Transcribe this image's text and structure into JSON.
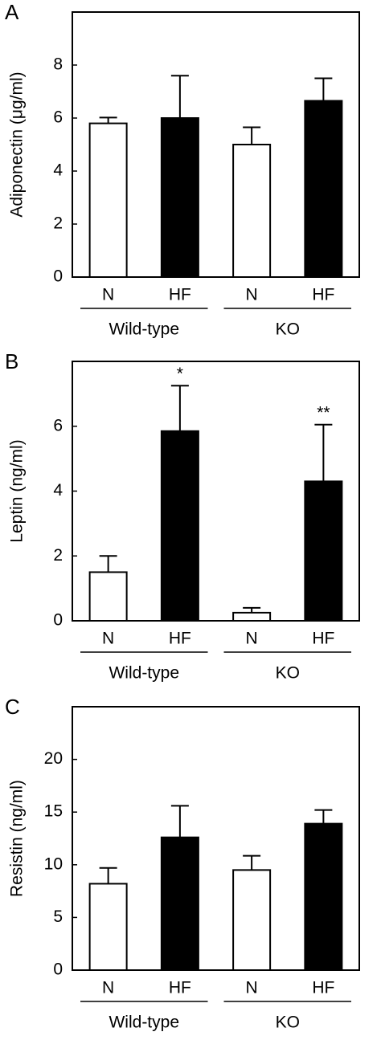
{
  "chart_data": [
    {
      "type": "bar",
      "panel_label": "A",
      "y_label": "Adiponectin (μg/ml)",
      "categories": [
        "N",
        "HF",
        "N",
        "HF"
      ],
      "groups": [
        "Wild-type",
        "KO"
      ],
      "values": [
        5.8,
        6.0,
        5.0,
        6.65
      ],
      "errors": [
        0.22,
        1.6,
        0.65,
        0.85
      ],
      "colors": [
        "#ffffff",
        "#000000",
        "#ffffff",
        "#000000"
      ],
      "ylim": [
        0,
        10
      ],
      "yticks": [
        0,
        2,
        4,
        6,
        8
      ]
    },
    {
      "type": "bar",
      "panel_label": "B",
      "y_label": "Leptin (ng/ml)",
      "categories": [
        "N",
        "HF",
        "N",
        "HF"
      ],
      "groups": [
        "Wild-type",
        "KO"
      ],
      "values": [
        1.5,
        5.85,
        0.25,
        4.3
      ],
      "errors": [
        0.5,
        1.4,
        0.15,
        1.75
      ],
      "colors": [
        "#ffffff",
        "#000000",
        "#ffffff",
        "#000000"
      ],
      "annotations": [
        null,
        "*",
        null,
        "**"
      ],
      "ylim": [
        0,
        8
      ],
      "yticks": [
        0,
        2,
        4,
        6
      ]
    },
    {
      "type": "bar",
      "panel_label": "C",
      "y_label": "Resistin (ng/ml)",
      "categories": [
        "N",
        "HF",
        "N",
        "HF"
      ],
      "groups": [
        "Wild-type",
        "KO"
      ],
      "values": [
        8.2,
        12.6,
        9.5,
        13.9
      ],
      "errors": [
        1.5,
        3.0,
        1.35,
        1.3
      ],
      "colors": [
        "#ffffff",
        "#000000",
        "#ffffff",
        "#000000"
      ],
      "ylim": [
        0,
        25
      ],
      "yticks": [
        0,
        5,
        10,
        15,
        20
      ]
    }
  ]
}
